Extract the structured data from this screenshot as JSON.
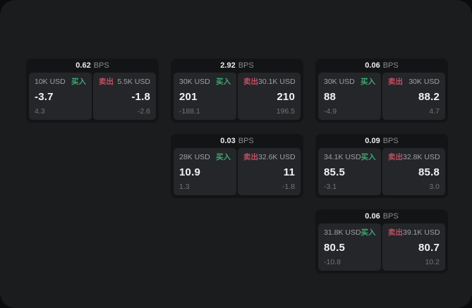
{
  "colors": {
    "window_bg": "#1b1c1e",
    "card_bg": "#131415",
    "panel_bg": "#242629",
    "buy_green": "#3da873",
    "sell_red": "#c04f61"
  },
  "bps_unit": "BPS",
  "cards": [
    {
      "bps_value": "0.62",
      "buy": {
        "amount": "10K USD",
        "label": "买入",
        "price": "-3.7",
        "change": "4.3"
      },
      "sell": {
        "amount": "5.5K USD",
        "label": "卖出",
        "price": "-1.8",
        "change": "-2.6"
      }
    },
    {
      "bps_value": "2.92",
      "buy": {
        "amount": "30K USD",
        "label": "买入",
        "price": "201",
        "change": "-188.1"
      },
      "sell": {
        "amount": "30.1K USD",
        "label": "卖出",
        "price": "210",
        "change": "196.5"
      }
    },
    {
      "bps_value": "0.06",
      "buy": {
        "amount": "30K USD",
        "label": "买入",
        "price": "88",
        "change": "-4.9"
      },
      "sell": {
        "amount": "30K USD",
        "label": "卖出",
        "price": "88.2",
        "change": "4.7"
      }
    },
    {
      "bps_value": "0.03",
      "buy": {
        "amount": "28K USD",
        "label": "买入",
        "price": "10.9",
        "change": "1.3"
      },
      "sell": {
        "amount": "32.6K USD",
        "label": "卖出",
        "price": "11",
        "change": "-1.8"
      }
    },
    {
      "bps_value": "0.09",
      "buy": {
        "amount": "34.1K USD",
        "label": "买入",
        "price": "85.5",
        "change": "-3.1"
      },
      "sell": {
        "amount": "32.8K USD",
        "label": "卖出",
        "price": "85.8",
        "change": "3.0"
      }
    },
    {
      "bps_value": "0.06",
      "buy": {
        "amount": "31.8K USD",
        "label": "买入",
        "price": "80.5",
        "change": "-10.8"
      },
      "sell": {
        "amount": "39.1K USD",
        "label": "卖出",
        "price": "80.7",
        "change": "10.2"
      }
    }
  ]
}
